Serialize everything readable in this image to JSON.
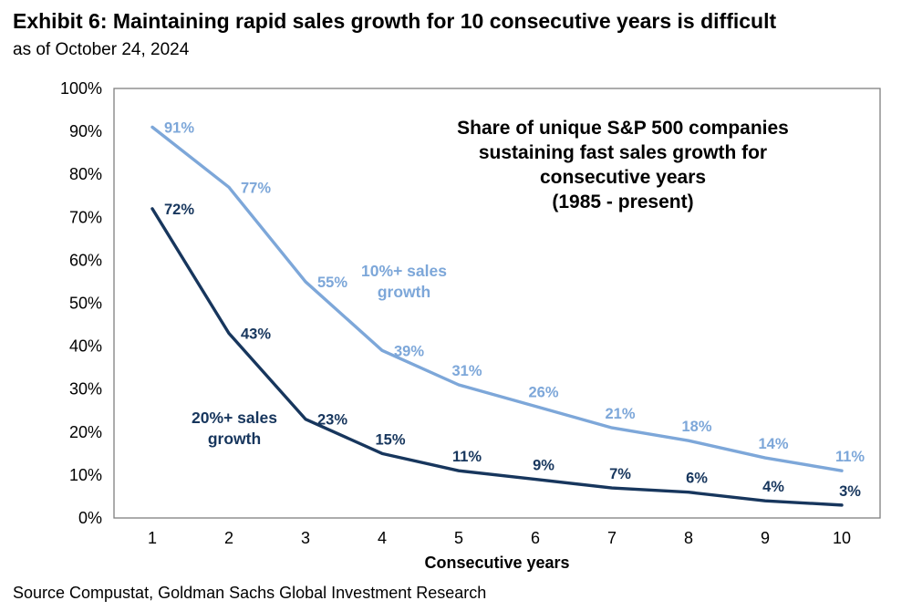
{
  "header": {
    "title": "Exhibit 6: Maintaining rapid sales growth for 10 consecutive years is difficult",
    "subtitle": "as of October 24, 2024"
  },
  "footer": {
    "source": "Source Compustat, Goldman Sachs Global Investment Research"
  },
  "chart_data": {
    "type": "line",
    "annotation_lines": [
      "Share of unique S&P 500 companies",
      "sustaining fast sales growth for",
      "consecutive years",
      "(1985 - present)"
    ],
    "categories": [
      1,
      2,
      3,
      4,
      5,
      6,
      7,
      8,
      9,
      10
    ],
    "xlabel": "Consecutive years",
    "ylabel": "",
    "ylim": [
      0,
      100
    ],
    "ytick_step": 10,
    "ytick_suffix": "%",
    "grid": false,
    "legend_position": "inline-labels",
    "series": [
      {
        "name": "10%+ sales growth",
        "label_lines": [
          "10%+ sales",
          "growth"
        ],
        "color": "#7da7d9",
        "values": [
          91,
          77,
          55,
          39,
          31,
          26,
          21,
          18,
          14,
          11
        ],
        "data_label_suffix": "%"
      },
      {
        "name": "20%+ sales growth",
        "label_lines": [
          "20%+ sales",
          "growth"
        ],
        "color": "#17365d",
        "values": [
          72,
          43,
          23,
          15,
          11,
          9,
          7,
          6,
          4,
          3
        ],
        "data_label_suffix": "%"
      }
    ],
    "plot_border_color": "#7f7f7f",
    "text_color": "#000000"
  }
}
